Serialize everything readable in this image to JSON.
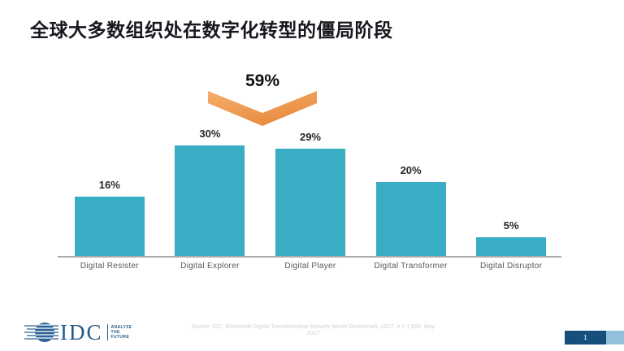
{
  "title": "全球大多数组织处在数字化转型的僵局阶段",
  "chart_data": {
    "type": "bar",
    "title": "全球大多数组织处在数字化转型的僵局阶段",
    "categories": [
      "Digital Resister",
      "Digital Explorer",
      "Digital Player",
      "Digital Transformer",
      "Digital Disruptor"
    ],
    "values": [
      16,
      30,
      29,
      20,
      5
    ],
    "value_labels": [
      "16%",
      "30%",
      "29%",
      "20%",
      "5%"
    ],
    "annotation": {
      "text": "59%",
      "note": "chevron spanning Digital Explorer and Digital Player",
      "spans": [
        "Digital Explorer",
        "Digital Player"
      ]
    },
    "bar_color": "#39ADC4",
    "xlabel": "",
    "ylabel": "",
    "ylim": [
      0,
      35
    ],
    "grid": false,
    "legend": false
  },
  "footer": {
    "logo": {
      "name": "IDC",
      "tagline_lines": [
        "ANALYZE",
        "THE",
        "FUTURE"
      ]
    },
    "source_line1": "Source: IDC, Worldwide Digital Transformation Maturity Model Benchmark, 2017, n = 1,884, May",
    "source_line2": "2017",
    "page_number": "1"
  },
  "colors": {
    "bar": "#39ADC4",
    "chevron_light": "#F5AF6C",
    "chevron_dark": "#E78B3E",
    "navy": "#174F7C",
    "light_blue_strip": "#92BFDB"
  }
}
